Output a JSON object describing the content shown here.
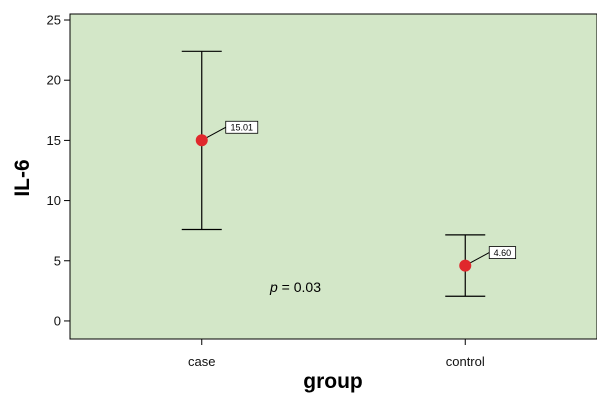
{
  "chart_data": {
    "type": "scatter",
    "title": "",
    "xlabel": "group",
    "ylabel": "IL-6",
    "ylim": [
      -1.5,
      25.5
    ],
    "y_ticks": [
      0,
      5,
      10,
      15,
      20,
      25
    ],
    "y_tick_labels": [
      "0",
      "5",
      "10",
      "15",
      "20",
      "25"
    ],
    "categories": [
      "case",
      "control"
    ],
    "series": [
      {
        "means": [
          15.01,
          4.6
        ],
        "lower": [
          7.6,
          2.05
        ],
        "upper": [
          22.4,
          7.15
        ],
        "labels": [
          "15.01",
          "4.60"
        ]
      }
    ],
    "annotation": {
      "italic": "p",
      "text": " = 0.03"
    },
    "grid": false,
    "colors": {
      "plot_background": "#d3e7c8",
      "marker": "#e0282c",
      "lines": "#000000"
    }
  }
}
